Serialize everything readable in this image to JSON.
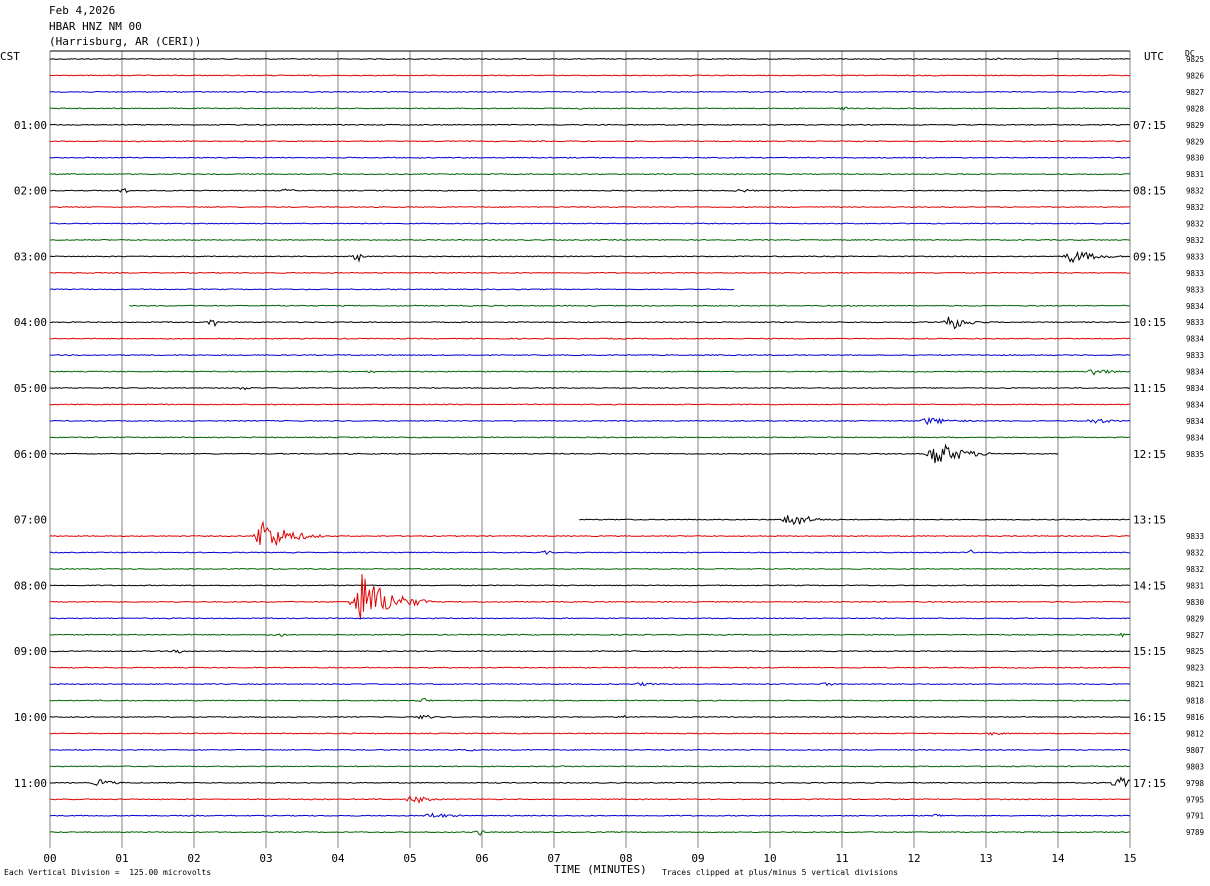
{
  "header": {
    "date": "Feb 4,2026",
    "station": "HBAR HNZ NM 00",
    "location": "(Harrisburg, AR (CERI))"
  },
  "left_axis_unit": "CST",
  "right_axis_unit": "UTC",
  "dc_label": "DC",
  "footer": {
    "scale_note": "Each Vertical Division =  125.00 microvolts",
    "xlabel": "TIME (MINUTES)",
    "clip_note": "Traces clipped at plus/minus 5 vertical divisions"
  },
  "colors": {
    "black": "#000000",
    "red": "#e00000",
    "blue": "#0000d0",
    "green": "#006400",
    "grid": "#808080"
  },
  "chart_data": {
    "type": "line",
    "title": "HBAR HNZ NM 00",
    "xlabel": "TIME (MINUTES)",
    "xlim": [
      0,
      15
    ],
    "x_ticks": [
      "00",
      "01",
      "02",
      "03",
      "04",
      "05",
      "06",
      "07",
      "08",
      "09",
      "10",
      "11",
      "12",
      "13",
      "14",
      "15"
    ],
    "rows_per_hour": 4,
    "row_colors": [
      "black",
      "red",
      "blue",
      "green"
    ],
    "left_time_labels": [
      "01:00",
      "02:00",
      "03:00",
      "04:00",
      "05:00",
      "06:00",
      "07:00",
      "08:00",
      "09:00",
      "10:00",
      "11:00"
    ],
    "right_time_labels": [
      "07:15",
      "08:15",
      "09:15",
      "10:15",
      "11:15",
      "12:15",
      "13:15",
      "14:15",
      "15:15",
      "16:15",
      "17:15"
    ],
    "traces": [
      {
        "row": 0,
        "dc": "9825",
        "start": 0,
        "end": 15,
        "events": [
          {
            "t": 13.2,
            "amp": 1.5,
            "dur": 0.3
          }
        ]
      },
      {
        "row": 1,
        "dc": "9826",
        "start": 0,
        "end": 15,
        "events": []
      },
      {
        "row": 2,
        "dc": "9827",
        "start": 0,
        "end": 15,
        "events": []
      },
      {
        "row": 3,
        "dc": "9828",
        "start": 0,
        "end": 15,
        "events": [
          {
            "t": 7.4,
            "amp": 1.5,
            "dur": 0.2
          },
          {
            "t": 11.05,
            "amp": 2,
            "dur": 0.1
          }
        ]
      },
      {
        "row": 4,
        "dc": "9829",
        "start": 0,
        "end": 15,
        "events": []
      },
      {
        "row": 5,
        "dc": "9829",
        "start": 0,
        "end": 15,
        "events": []
      },
      {
        "row": 6,
        "dc": "9830",
        "start": 0,
        "end": 15,
        "events": []
      },
      {
        "row": 7,
        "dc": "9831",
        "start": 0,
        "end": 15,
        "events": []
      },
      {
        "row": 8,
        "dc": "9832",
        "start": 0,
        "end": 15,
        "events": [
          {
            "t": 1.05,
            "amp": 3,
            "dur": 0.1
          },
          {
            "t": 3.3,
            "amp": 2,
            "dur": 0.3
          },
          {
            "t": 9.6,
            "amp": 2,
            "dur": 0.5
          }
        ]
      },
      {
        "row": 9,
        "dc": "9832",
        "start": 0,
        "end": 15,
        "events": []
      },
      {
        "row": 10,
        "dc": "9832",
        "start": 0,
        "end": 15,
        "events": []
      },
      {
        "row": 11,
        "dc": "9832",
        "start": 0,
        "end": 15,
        "events": []
      },
      {
        "row": 12,
        "dc": "9833",
        "start": 0,
        "end": 15,
        "events": [
          {
            "t": 4.3,
            "amp": 6,
            "dur": 0.1
          },
          {
            "t": 14.2,
            "amp": 7,
            "dur": 0.9
          }
        ]
      },
      {
        "row": 13,
        "dc": "9833",
        "start": 0,
        "end": 15,
        "events": []
      },
      {
        "row": 14,
        "dc": "9833",
        "start": 0,
        "end": 9.5,
        "events": []
      },
      {
        "row": 15,
        "dc": "9834",
        "start": 1.1,
        "end": 15,
        "events": []
      },
      {
        "row": 16,
        "dc": "9833",
        "start": 0,
        "end": 15,
        "events": [
          {
            "t": 2.3,
            "amp": 5,
            "dur": 0.1
          },
          {
            "t": 12.5,
            "amp": 9,
            "dur": 0.6
          }
        ]
      },
      {
        "row": 17,
        "dc": "9834",
        "start": 0,
        "end": 15,
        "events": []
      },
      {
        "row": 18,
        "dc": "9833",
        "start": 0,
        "end": 15,
        "events": []
      },
      {
        "row": 19,
        "dc": "9834",
        "start": 0,
        "end": 15,
        "events": [
          {
            "t": 4.5,
            "amp": 2,
            "dur": 0.1
          },
          {
            "t": 14.5,
            "amp": 4,
            "dur": 0.6
          }
        ]
      },
      {
        "row": 20,
        "dc": "9834",
        "start": 0,
        "end": 15,
        "events": [
          {
            "t": 2.7,
            "amp": 2,
            "dur": 0.3
          }
        ]
      },
      {
        "row": 21,
        "dc": "9834",
        "start": 0,
        "end": 15,
        "events": []
      },
      {
        "row": 22,
        "dc": "9834",
        "start": 0,
        "end": 15,
        "events": [
          {
            "t": 12.2,
            "amp": 4,
            "dur": 0.9
          },
          {
            "t": 14.5,
            "amp": 3,
            "dur": 0.8
          }
        ]
      },
      {
        "row": 23,
        "dc": "9834",
        "start": 0,
        "end": 15,
        "events": []
      },
      {
        "row": 24,
        "dc": "9835",
        "start": 0,
        "end": 14.0,
        "events": [
          {
            "t": 12.3,
            "amp": 14,
            "dur": 0.9
          }
        ]
      },
      {
        "row": 25,
        "dc": "",
        "start": 0,
        "end": 0,
        "events": []
      },
      {
        "row": 26,
        "dc": "",
        "start": 0,
        "end": 0,
        "events": []
      },
      {
        "row": 27,
        "dc": "",
        "start": 0,
        "end": 0,
        "events": []
      },
      {
        "row": 28,
        "dc": "",
        "start": 7.35,
        "end": 15,
        "events": [
          {
            "t": 10.3,
            "amp": 9,
            "dur": 0.6
          }
        ]
      },
      {
        "row": 29,
        "dc": "9833",
        "start": 0,
        "end": 15,
        "events": [
          {
            "t": 2.95,
            "amp": 18,
            "dur": 0.9
          }
        ]
      },
      {
        "row": 30,
        "dc": "9832",
        "start": 0,
        "end": 15,
        "events": [
          {
            "t": 6.9,
            "amp": 2,
            "dur": 0.2
          },
          {
            "t": 12.8,
            "amp": 3,
            "dur": 0.1
          }
        ]
      },
      {
        "row": 31,
        "dc": "9832",
        "start": 0,
        "end": 15,
        "events": []
      },
      {
        "row": 32,
        "dc": "9831",
        "start": 0,
        "end": 15,
        "events": []
      },
      {
        "row": 33,
        "dc": "9830",
        "start": 0,
        "end": 15,
        "events": [
          {
            "t": 4.3,
            "amp": 32,
            "dur": 1.0
          }
        ]
      },
      {
        "row": 34,
        "dc": "9829",
        "start": 0,
        "end": 15,
        "events": []
      },
      {
        "row": 35,
        "dc": "9827",
        "start": 0,
        "end": 15,
        "events": [
          {
            "t": 3.2,
            "amp": 2,
            "dur": 0.4
          },
          {
            "t": 14.9,
            "amp": 2,
            "dur": 0.1
          }
        ]
      },
      {
        "row": 36,
        "dc": "9825",
        "start": 0,
        "end": 15,
        "events": [
          {
            "t": 1.8,
            "amp": 2,
            "dur": 0.3
          }
        ]
      },
      {
        "row": 37,
        "dc": "9823",
        "start": 0,
        "end": 15,
        "events": []
      },
      {
        "row": 38,
        "dc": "9821",
        "start": 0,
        "end": 15,
        "events": [
          {
            "t": 8.2,
            "amp": 2,
            "dur": 0.6
          },
          {
            "t": 10.8,
            "amp": 2,
            "dur": 0.3
          }
        ]
      },
      {
        "row": 39,
        "dc": "9818",
        "start": 0,
        "end": 15,
        "events": [
          {
            "t": 5.2,
            "amp": 3,
            "dur": 0.2
          }
        ]
      },
      {
        "row": 40,
        "dc": "9816",
        "start": 0,
        "end": 15,
        "events": [
          {
            "t": 5.2,
            "amp": 3,
            "dur": 0.3
          },
          {
            "t": 8.0,
            "amp": 2,
            "dur": 0.3
          }
        ]
      },
      {
        "row": 41,
        "dc": "9812",
        "start": 0,
        "end": 15,
        "events": [
          {
            "t": 13.1,
            "amp": 2,
            "dur": 0.4
          }
        ]
      },
      {
        "row": 42,
        "dc": "9807",
        "start": 0,
        "end": 15,
        "events": [
          {
            "t": 5.8,
            "amp": 2,
            "dur": 0.3
          }
        ]
      },
      {
        "row": 43,
        "dc": "9803",
        "start": 0,
        "end": 15,
        "events": []
      },
      {
        "row": 44,
        "dc": "9798",
        "start": 0,
        "end": 15,
        "events": [
          {
            "t": 0.7,
            "amp": 4,
            "dur": 0.5
          },
          {
            "t": 14.85,
            "amp": 7,
            "dur": 0.4
          }
        ]
      },
      {
        "row": 45,
        "dc": "9795",
        "start": 0,
        "end": 15,
        "events": [
          {
            "t": 5.05,
            "amp": 5,
            "dur": 0.5
          }
        ]
      },
      {
        "row": 46,
        "dc": "9791",
        "start": 0,
        "end": 15,
        "events": [
          {
            "t": 5.3,
            "amp": 3,
            "dur": 0.8
          },
          {
            "t": 12.3,
            "amp": 2,
            "dur": 0.5
          }
        ]
      },
      {
        "row": 47,
        "dc": "9789",
        "start": 0,
        "end": 15,
        "events": [
          {
            "t": 6.0,
            "amp": 4,
            "dur": 0.1
          }
        ]
      }
    ]
  }
}
